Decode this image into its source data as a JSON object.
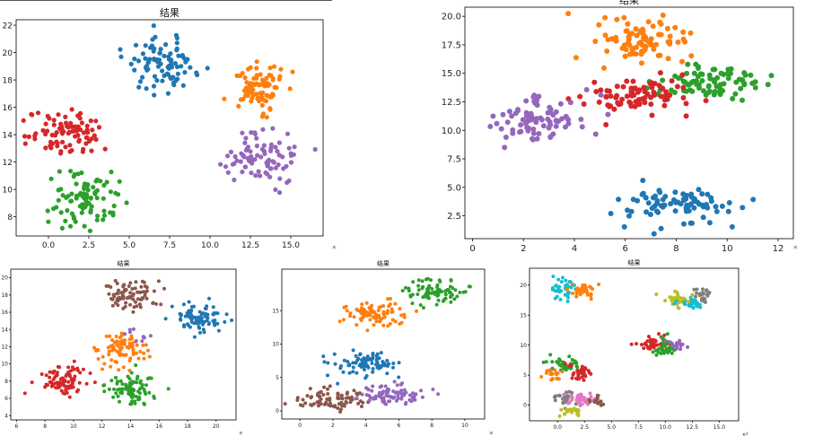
{
  "chart_data": [
    {
      "type": "scatter",
      "title": "结果",
      "xticks": [
        0,
        2.5,
        5,
        7.5,
        10,
        12.5,
        15
      ],
      "xtick_labels": [
        "0.0",
        "2.5",
        "5.0",
        "7.5",
        "10.0",
        "12.5",
        "15.0"
      ],
      "yticks": [
        8,
        10,
        12,
        14,
        16,
        18,
        20,
        22
      ],
      "xlim": [
        -2,
        17
      ],
      "ylim": [
        6.6,
        22.4
      ],
      "clusters": [
        {
          "color": "#1f77b4",
          "center": [
            7.1,
            19.1
          ],
          "spread": [
            1.05,
            0.95
          ],
          "count": 90
        },
        {
          "color": "#ff7f0e",
          "center": [
            13.0,
            17.6
          ],
          "spread": [
            0.95,
            0.9
          ],
          "count": 90
        },
        {
          "color": "#d62728",
          "center": [
            1.2,
            14.2
          ],
          "spread": [
            1.15,
            0.85
          ],
          "count": 90
        },
        {
          "color": "#9467bd",
          "center": [
            13.0,
            12.3
          ],
          "spread": [
            1.1,
            0.95
          ],
          "count": 90
        },
        {
          "color": "#2ca02c",
          "center": [
            2.4,
            9.3
          ],
          "spread": [
            1.0,
            1.0
          ],
          "count": 90
        }
      ]
    },
    {
      "type": "scatter",
      "title": "结果",
      "xticks": [
        0,
        2,
        4,
        6,
        8,
        10,
        12
      ],
      "xtick_labels": [
        "0",
        "2",
        "4",
        "6",
        "8",
        "10",
        "12"
      ],
      "yticks": [
        2.5,
        5,
        7.5,
        10,
        12.5,
        15,
        17.5,
        20
      ],
      "ytick_labels": [
        "2.5",
        "5.0",
        "7.5",
        "10.0",
        "12.5",
        "15.0",
        "17.5",
        "20.0"
      ],
      "xlim": [
        -0.3,
        12.6
      ],
      "ylim": [
        0.5,
        20.8
      ],
      "clusters": [
        {
          "color": "#ff7f0e",
          "center": [
            6.4,
            17.6
          ],
          "spread": [
            0.95,
            1.0
          ],
          "count": 85
        },
        {
          "color": "#2ca02c",
          "center": [
            9.3,
            14.2
          ],
          "spread": [
            0.95,
            0.8
          ],
          "count": 85
        },
        {
          "color": "#d62728",
          "center": [
            6.5,
            13.2
          ],
          "spread": [
            1.0,
            0.85
          ],
          "count": 85
        },
        {
          "color": "#9467bd",
          "center": [
            2.7,
            11.0
          ],
          "spread": [
            1.0,
            1.0
          ],
          "count": 85
        },
        {
          "color": "#1f77b4",
          "center": [
            8.0,
            3.4
          ],
          "spread": [
            1.05,
            0.95
          ],
          "count": 85
        }
      ]
    },
    {
      "type": "scatter",
      "title": "结果",
      "xticks": [
        6,
        8,
        10,
        12,
        14,
        16,
        18,
        20
      ],
      "xtick_labels": [
        "6",
        "8",
        "10",
        "12",
        "14",
        "16",
        "18",
        "20"
      ],
      "yticks": [
        4,
        6,
        8,
        10,
        12,
        14,
        16,
        18,
        20
      ],
      "xlim": [
        5.6,
        21.4
      ],
      "ylim": [
        3.5,
        21.0
      ],
      "clusters": [
        {
          "color": "#8c564b",
          "center": [
            14.0,
            18.0
          ],
          "spread": [
            0.95,
            0.85
          ],
          "count": 85
        },
        {
          "color": "#1f77b4",
          "center": [
            18.8,
            15.2
          ],
          "spread": [
            0.95,
            0.95
          ],
          "count": 85
        },
        {
          "color": "#ff7f0e",
          "center": [
            13.4,
            11.8
          ],
          "spread": [
            0.85,
            0.95
          ],
          "count": 85
        },
        {
          "color": "#d62728",
          "center": [
            9.3,
            8.0
          ],
          "spread": [
            0.9,
            0.9
          ],
          "count": 85
        },
        {
          "color": "#2ca02c",
          "center": [
            14.0,
            7.0
          ],
          "spread": [
            0.95,
            0.95
          ],
          "count": 85
        },
        {
          "color": "#9467bd",
          "center": [
            14.4,
            13.2
          ],
          "spread": [
            0.6,
            0.7
          ],
          "count": 10
        }
      ]
    },
    {
      "type": "scatter",
      "title": "结果",
      "xticks": [
        0,
        2,
        4,
        6,
        8,
        10
      ],
      "xtick_labels": [
        "0",
        "2",
        "4",
        "6",
        "8",
        "10"
      ],
      "yticks": [
        0,
        5,
        10,
        15
      ],
      "xlim": [
        -1.1,
        11.2
      ],
      "ylim": [
        -1.2,
        21.2
      ],
      "clusters": [
        {
          "color": "#2ca02c",
          "center": [
            8.2,
            17.8
          ],
          "spread": [
            1.0,
            0.9
          ],
          "count": 85
        },
        {
          "color": "#ff7f0e",
          "center": [
            4.5,
            14.6
          ],
          "spread": [
            1.05,
            0.9
          ],
          "count": 85
        },
        {
          "color": "#1f77b4",
          "center": [
            4.3,
            7.3
          ],
          "spread": [
            1.0,
            1.0
          ],
          "count": 85
        },
        {
          "color": "#8c564b",
          "center": [
            2.0,
            1.8
          ],
          "spread": [
            1.0,
            0.75
          ],
          "count": 85
        },
        {
          "color": "#9467bd",
          "center": [
            5.6,
            2.4
          ],
          "spread": [
            1.0,
            0.8
          ],
          "count": 85
        }
      ]
    },
    {
      "type": "scatter",
      "title": "结果",
      "xticks": [
        0,
        2.5,
        5,
        7.5,
        10,
        12.5,
        15
      ],
      "xtick_labels": [
        "0.0",
        "2.5",
        "5.0",
        "7.5",
        "10.0",
        "12.5",
        "15.0"
      ],
      "yticks": [
        0,
        5,
        10,
        15,
        20
      ],
      "xlim": [
        -2.6,
        16.8
      ],
      "ylim": [
        -2.6,
        22.8
      ],
      "clusters": [
        {
          "color": "#17becf",
          "center": [
            0.6,
            19.3
          ],
          "spread": [
            0.7,
            0.7
          ],
          "count": 40
        },
        {
          "color": "#ff7f0e",
          "center": [
            2.4,
            19.0
          ],
          "spread": [
            0.6,
            0.7
          ],
          "count": 35
        },
        {
          "color": "#bcbd22",
          "center": [
            11.3,
            17.6
          ],
          "spread": [
            0.8,
            0.7
          ],
          "count": 40
        },
        {
          "color": "#7f7f7f",
          "center": [
            13.3,
            18.2
          ],
          "spread": [
            0.55,
            0.6
          ],
          "count": 25
        },
        {
          "color": "#17becf",
          "center": [
            12.6,
            16.8
          ],
          "spread": [
            0.7,
            0.6
          ],
          "count": 25
        },
        {
          "color": "#d62728",
          "center": [
            9.1,
            10.4
          ],
          "spread": [
            0.75,
            0.65
          ],
          "count": 40
        },
        {
          "color": "#2ca02c",
          "center": [
            10.1,
            9.5
          ],
          "spread": [
            0.6,
            0.7
          ],
          "count": 40
        },
        {
          "color": "#9467bd",
          "center": [
            11.2,
            10.0
          ],
          "spread": [
            0.55,
            0.6
          ],
          "count": 15
        },
        {
          "color": "#2ca02c",
          "center": [
            0.5,
            6.6
          ],
          "spread": [
            0.7,
            0.6
          ],
          "count": 35
        },
        {
          "color": "#d62728",
          "center": [
            2.0,
            5.5
          ],
          "spread": [
            0.65,
            0.6
          ],
          "count": 35
        },
        {
          "color": "#ff7f0e",
          "center": [
            -0.4,
            5.3
          ],
          "spread": [
            0.5,
            0.55
          ],
          "count": 20
        },
        {
          "color": "#7f7f7f",
          "center": [
            0.6,
            1.2
          ],
          "spread": [
            0.6,
            0.6
          ],
          "count": 25
        },
        {
          "color": "#e377c2",
          "center": [
            2.3,
            0.8
          ],
          "spread": [
            0.6,
            0.55
          ],
          "count": 35
        },
        {
          "color": "#bcbd22",
          "center": [
            1.3,
            -0.8
          ],
          "spread": [
            0.55,
            0.45
          ],
          "count": 25
        },
        {
          "color": "#8c564b",
          "center": [
            3.6,
            0.4
          ],
          "spread": [
            0.4,
            0.6
          ],
          "count": 15
        }
      ]
    }
  ]
}
